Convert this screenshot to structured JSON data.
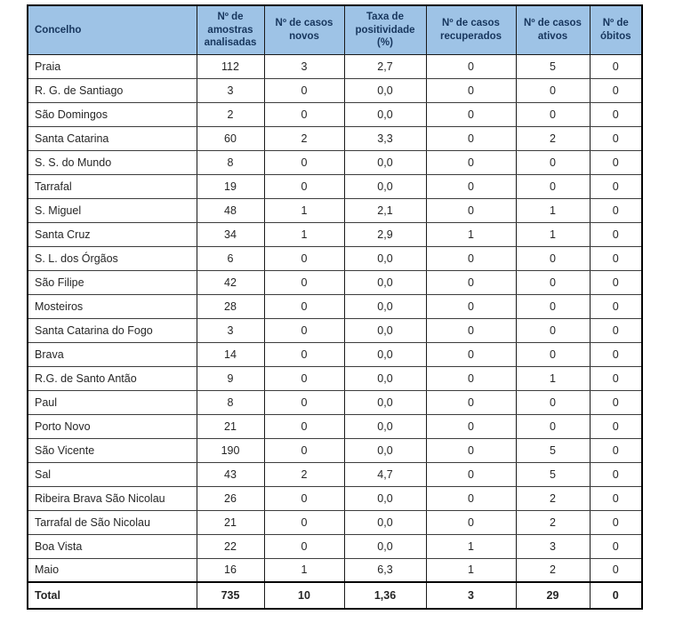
{
  "page": {
    "background_color": "#ffffff"
  },
  "table": {
    "name": "covid-concelhos-table",
    "style": {
      "header_bg": "#9ec3e6",
      "header_text_color": "#17365d",
      "body_text_color": "#262626",
      "border_color": "#1a1a1a"
    },
    "columns": [
      {
        "id": "concelho",
        "label": "Concelho"
      },
      {
        "id": "amostras",
        "label": "Nº de amostras analisadas"
      },
      {
        "id": "novos",
        "label": "Nº de casos novos"
      },
      {
        "id": "taxa",
        "label": "Taxa de positividade (%)"
      },
      {
        "id": "recuperados",
        "label": "Nº de casos recuperados"
      },
      {
        "id": "ativos",
        "label": "Nº de casos ativos"
      },
      {
        "id": "obitos",
        "label": "Nº de óbitos"
      }
    ],
    "rows": [
      {
        "cells": [
          "Praia",
          "112",
          "3",
          "2,7",
          "0",
          "5",
          "0"
        ]
      },
      {
        "cells": [
          "R. G. de Santiago",
          "3",
          "0",
          "0,0",
          "0",
          "0",
          "0"
        ]
      },
      {
        "cells": [
          "São Domingos",
          "2",
          "0",
          "0,0",
          "0",
          "0",
          "0"
        ]
      },
      {
        "cells": [
          "Santa Catarina",
          "60",
          "2",
          "3,3",
          "0",
          "2",
          "0"
        ]
      },
      {
        "cells": [
          "S. S. do Mundo",
          "8",
          "0",
          "0,0",
          "0",
          "0",
          "0"
        ]
      },
      {
        "cells": [
          "Tarrafal",
          "19",
          "0",
          "0,0",
          "0",
          "0",
          "0"
        ]
      },
      {
        "cells": [
          "S. Miguel",
          "48",
          "1",
          "2,1",
          "0",
          "1",
          "0"
        ]
      },
      {
        "cells": [
          "Santa Cruz",
          "34",
          "1",
          "2,9",
          "1",
          "1",
          "0"
        ]
      },
      {
        "cells": [
          "S. L. dos Órgãos",
          "6",
          "0",
          "0,0",
          "0",
          "0",
          "0"
        ]
      },
      {
        "cells": [
          "São Filipe",
          "42",
          "0",
          "0,0",
          "0",
          "0",
          "0"
        ]
      },
      {
        "cells": [
          "Mosteiros",
          "28",
          "0",
          "0,0",
          "0",
          "0",
          "0"
        ]
      },
      {
        "cells": [
          "Santa Catarina do Fogo",
          "3",
          "0",
          "0,0",
          "0",
          "0",
          "0"
        ]
      },
      {
        "cells": [
          "Brava",
          "14",
          "0",
          "0,0",
          "0",
          "0",
          "0"
        ]
      },
      {
        "cells": [
          "R.G. de Santo Antão",
          "9",
          "0",
          "0,0",
          "0",
          "1",
          "0"
        ]
      },
      {
        "cells": [
          "Paul",
          "8",
          "0",
          "0,0",
          "0",
          "0",
          "0"
        ]
      },
      {
        "cells": [
          "Porto Novo",
          "21",
          "0",
          "0,0",
          "0",
          "0",
          "0"
        ]
      },
      {
        "cells": [
          "São Vicente",
          "190",
          "0",
          "0,0",
          "0",
          "5",
          "0"
        ]
      },
      {
        "cells": [
          "Sal",
          "43",
          "2",
          "4,7",
          "0",
          "5",
          "0"
        ]
      },
      {
        "cells": [
          "Ribeira Brava São Nicolau",
          "26",
          "0",
          "0,0",
          "0",
          "2",
          "0"
        ]
      },
      {
        "cells": [
          "Tarrafal de São Nicolau",
          "21",
          "0",
          "0,0",
          "0",
          "2",
          "0"
        ]
      },
      {
        "cells": [
          "Boa Vista",
          "22",
          "0",
          "0,0",
          "1",
          "3",
          "0"
        ]
      },
      {
        "cells": [
          "Maio",
          "16",
          "1",
          "6,3",
          "1",
          "2",
          "0"
        ]
      }
    ],
    "total_row": {
      "cells": [
        "Total",
        "735",
        "10",
        "1,36",
        "3",
        "29",
        "0"
      ]
    }
  }
}
